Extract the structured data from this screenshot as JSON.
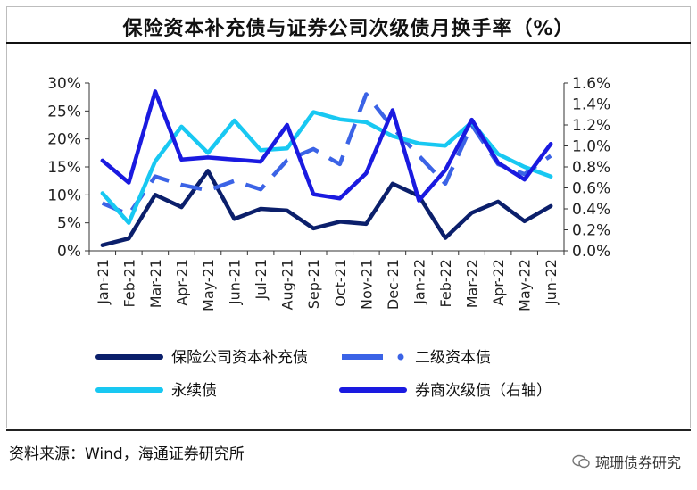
{
  "title": "保险资本补充债与证券公司次级债月换手率（%）",
  "source": "资料来源：Wind，海通证券研究所",
  "watermark": "琬珊债券研究",
  "chart_data": {
    "type": "line",
    "categories": [
      "Jan-21",
      "Feb-21",
      "Mar-21",
      "Apr-21",
      "May-21",
      "Jun-21",
      "Jul-21",
      "Aug-21",
      "Sep-21",
      "Oct-21",
      "Nov-21",
      "Dec-21",
      "Jan-22",
      "Feb-22",
      "Mar-22",
      "Apr-22",
      "May-22",
      "Jun-22"
    ],
    "left_axis": {
      "ticks": [
        "0%",
        "5%",
        "10%",
        "15%",
        "20%",
        "25%",
        "30%"
      ],
      "ylim": [
        0,
        30
      ]
    },
    "right_axis": {
      "ticks": [
        "0.0%",
        "0.2%",
        "0.4%",
        "0.6%",
        "0.8%",
        "1.0%",
        "1.2%",
        "1.4%",
        "1.6%"
      ],
      "ylim": [
        0,
        1.6
      ]
    },
    "series": [
      {
        "name": "保险公司资本补充债",
        "axis": "left",
        "color": "#0b1f6b",
        "style": "solid",
        "values": [
          1.0,
          2.2,
          10.0,
          7.8,
          14.3,
          5.7,
          7.5,
          7.2,
          4.0,
          5.2,
          4.8,
          12.0,
          9.8,
          2.3,
          6.8,
          8.8,
          5.3,
          8.0
        ]
      },
      {
        "name": "二级资本债",
        "axis": "left",
        "color": "#3b63e6",
        "style": "dashed",
        "values": [
          8.5,
          6.5,
          13.3,
          11.8,
          10.8,
          12.5,
          11.0,
          16.2,
          18.2,
          15.5,
          28.0,
          22.0,
          17.0,
          12.0,
          22.5,
          15.5,
          13.7,
          17.0
        ]
      },
      {
        "name": "永续债",
        "axis": "left",
        "color": "#18c8f2",
        "style": "solid",
        "values": [
          10.3,
          5.0,
          16.0,
          22.2,
          17.5,
          23.3,
          18.0,
          18.3,
          24.8,
          23.5,
          23.0,
          20.5,
          19.2,
          18.8,
          23.0,
          17.3,
          15.0,
          13.3
        ]
      },
      {
        "name": "券商次级债（右轴）",
        "axis": "right",
        "color": "#1a1ae0",
        "style": "solid",
        "values": [
          0.86,
          0.65,
          1.52,
          0.87,
          0.89,
          0.87,
          0.85,
          1.2,
          0.54,
          0.5,
          0.74,
          1.34,
          0.48,
          0.77,
          1.25,
          0.84,
          0.68,
          1.02
        ]
      }
    ],
    "legend": "bottom"
  }
}
